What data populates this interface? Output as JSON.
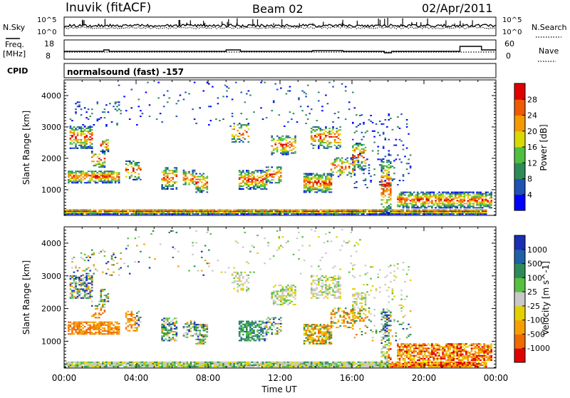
{
  "header": {
    "station": "Inuvik  (fitACF)",
    "beam": "Beam 02",
    "date": "02/Apr/2011"
  },
  "strip_labels": {
    "nsky": "N.Sky",
    "freq_line1": "Freq.",
    "freq_line2": "[MHz]",
    "cpid": "CPID",
    "nsearch": "N.Search",
    "nave": "Nave",
    "nsky_ticks": [
      "10^5",
      "10^0"
    ],
    "freq_ticks": [
      "18",
      "8"
    ],
    "nsearch_ticks": [
      "10^5",
      "10^0"
    ],
    "nave_ticks": [
      "60",
      "0"
    ]
  },
  "cpid_text": "normalsound (fast) -157",
  "colors": {
    "power_scale": [
      "#0000ff",
      "#1f52b3",
      "#2e8b57",
      "#4fbf3f",
      "#d9d900",
      "#f59a00",
      "#f05a00",
      "#e00000"
    ],
    "velocity_scale": [
      "#1a2fb3",
      "#2060a8",
      "#2e8b57",
      "#58c040",
      "#c8c8c8",
      "#e3d000",
      "#f5a000",
      "#f06a00",
      "#e00000"
    ]
  },
  "chart_data": [
    {
      "type": "line",
      "name": "sky-noise-and-search-noise-strip",
      "y_labels": [
        "N.Sky",
        "N.Search"
      ],
      "y_scale": "log",
      "ylim": [
        1,
        100000
      ]
    },
    {
      "type": "line",
      "name": "frequency-and-nave-strip",
      "y_labels": [
        "Freq. [MHz]",
        "Nave"
      ],
      "freq_ylim": [
        8,
        18
      ],
      "nave_ylim": [
        0,
        60
      ]
    },
    {
      "type": "heatmap",
      "name": "power-panel",
      "ylabel": "Slant Range [km]",
      "yticks": [
        "1000",
        "2000",
        "3000",
        "4000"
      ],
      "ylim": [
        180,
        4500
      ],
      "colorbar_label": "Power [dB]",
      "colorbar_ticks": [
        "4",
        "8",
        "12",
        "16",
        "20",
        "24",
        "28"
      ],
      "colorbar_range": [
        0,
        30
      ]
    },
    {
      "type": "heatmap",
      "name": "velocity-panel",
      "ylabel": "Slant Range [km]",
      "yticks": [
        "1000",
        "2000",
        "3000",
        "4000"
      ],
      "ylim": [
        180,
        4500
      ],
      "colorbar_label": "Velocity [m s^-1]",
      "colorbar_ticks": [
        "1000",
        "500",
        "100",
        "25",
        "-25",
        "-100",
        "-500",
        "-1000"
      ],
      "xlabel": "Time UT",
      "xticks": [
        "00:00",
        "04:00",
        "08:00",
        "12:00",
        "16:00",
        "20:00",
        "00:00"
      ],
      "xlim_hours": [
        0,
        24
      ]
    }
  ]
}
